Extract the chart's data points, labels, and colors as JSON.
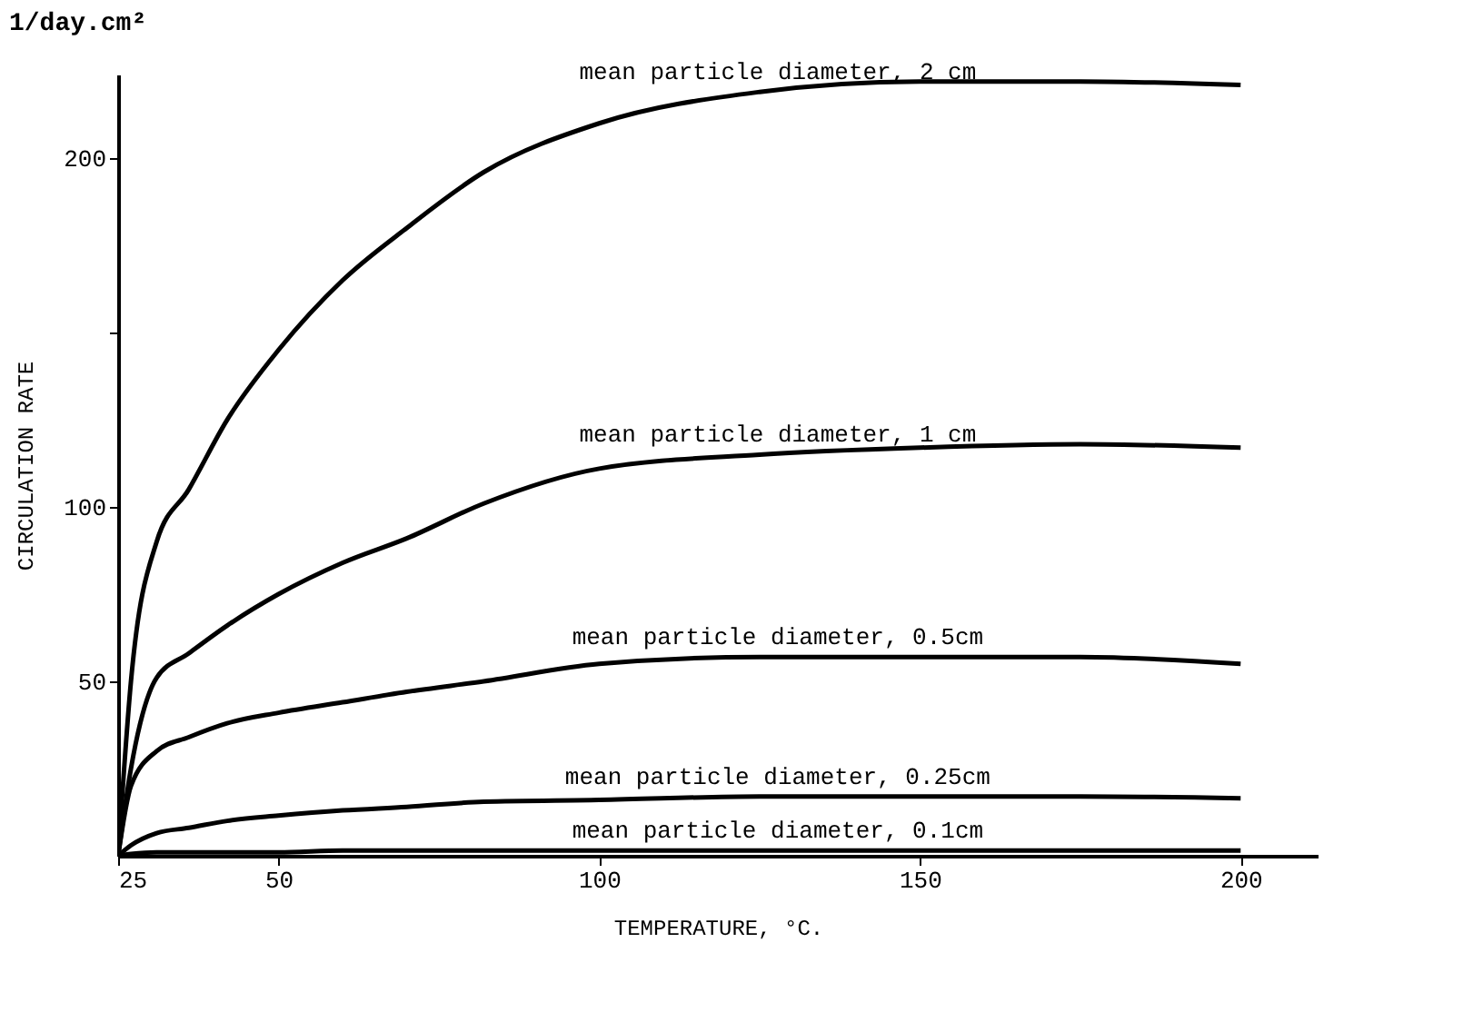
{
  "chart_data": {
    "type": "line",
    "title": "1/day.cm²",
    "xlabel": "TEMPERATURE, °C.",
    "ylabel": "CIRCULATION RATE",
    "x": [
      25,
      27,
      31,
      36,
      42,
      50,
      60,
      70,
      82,
      100,
      125,
      150,
      175,
      200
    ],
    "series": [
      {
        "name": "mean particle diameter, 2 cm",
        "color": "#000000",
        "values": [
          0,
          50,
          90,
          105,
          125,
          145,
          165,
          180,
          196,
          210,
          219,
          222,
          222,
          221
        ]
      },
      {
        "name": "mean particle diameter, 1 cm",
        "color": "#000000",
        "values": [
          0,
          25,
          51,
          58,
          66,
          75,
          84,
          91,
          101,
          111,
          115,
          117,
          118,
          117
        ]
      },
      {
        "name": "mean particle diameter, 0.5cm",
        "color": "#000000",
        "values": [
          0,
          20,
          30,
          34,
          38,
          41,
          44,
          47,
          50,
          55,
          57,
          57,
          57,
          55
        ]
      },
      {
        "name": "mean particle diameter, 0.25cm",
        "color": "#000000",
        "values": [
          0,
          3,
          6.5,
          8,
          10,
          11.5,
          13,
          14,
          15.5,
          16,
          17,
          17,
          17,
          16.5
        ]
      },
      {
        "name": "mean particle diameter, 0.1cm",
        "color": "#000000",
        "values": [
          0,
          0.5,
          1,
          1,
          1,
          1,
          1.5,
          1.5,
          1.5,
          1.5,
          1.5,
          1.5,
          1.5,
          1.5
        ]
      }
    ],
    "xlim": [
      25,
      212
    ],
    "xticks": [
      25,
      50,
      100,
      150,
      200
    ],
    "ylim": [
      0,
      224
    ],
    "yticks": [
      50,
      100,
      {
        "value": 150,
        "label": null
      },
      200
    ],
    "grid": false,
    "legend": false,
    "marker": "none",
    "line_style": "solid"
  }
}
